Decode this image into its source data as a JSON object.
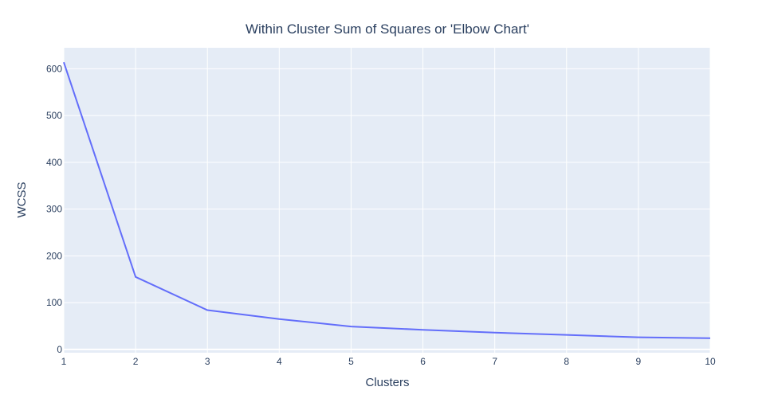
{
  "chart_data": {
    "type": "line",
    "title": "Within Cluster Sum of Squares or 'Elbow Chart'",
    "xlabel": "Clusters",
    "ylabel": "WCSS",
    "xlim": [
      1,
      10
    ],
    "ylim": [
      -7,
      645
    ],
    "grid": true,
    "legend": "none",
    "xticks": [
      1,
      2,
      3,
      4,
      5,
      6,
      7,
      8,
      9,
      10
    ],
    "yticks": [
      0,
      100,
      200,
      300,
      400,
      500,
      600
    ],
    "colors": {
      "plot_background": "#e5ecf6",
      "grid": "#ffffff",
      "line": "#636efa",
      "text": "#2a3f5f"
    },
    "series": [
      {
        "x": [
          1,
          2,
          3,
          4,
          5,
          6,
          7,
          8,
          9,
          10
        ],
        "y": [
          614,
          155,
          84,
          65,
          49,
          42,
          36,
          31,
          26,
          24
        ]
      }
    ]
  }
}
